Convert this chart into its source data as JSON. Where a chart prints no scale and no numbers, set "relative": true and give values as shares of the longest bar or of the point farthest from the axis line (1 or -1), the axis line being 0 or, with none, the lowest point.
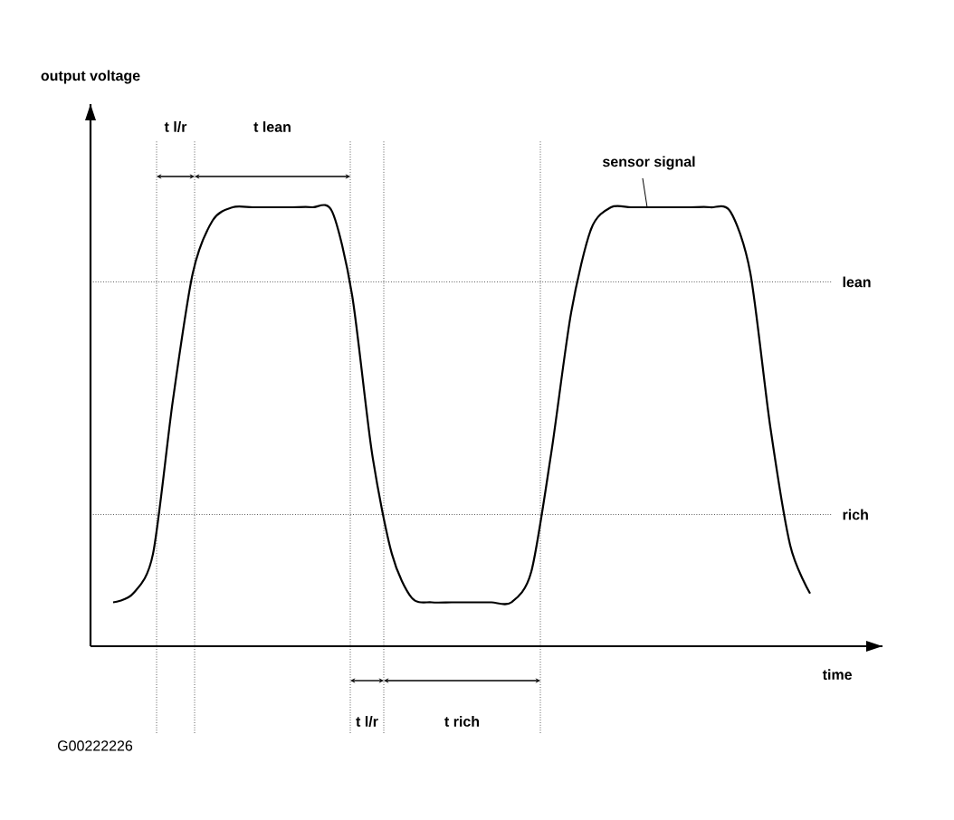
{
  "chart_data": {
    "type": "line",
    "relative": true,
    "xlabel": "time",
    "categories": [
      null,
      null,
      null,
      null,
      null,
      null,
      null,
      null,
      null,
      null,
      null,
      null,
      null,
      null,
      null,
      null,
      null,
      null,
      null,
      null,
      null,
      null,
      null,
      null,
      null,
      null,
      null,
      null,
      null,
      null,
      null,
      null,
      null,
      null,
      null,
      null
    ],
    "series": [
      {
        "color": "#000000",
        "values": [
          0.1,
          0.12,
          0.21,
          0.56,
          0.85,
          0.97,
          1,
          1,
          1,
          1,
          1,
          0.99,
          0.8,
          0.44,
          0.21,
          0.11,
          0.1,
          0.1,
          0.1,
          0.1,
          0.1,
          0.17,
          0.44,
          0.76,
          0.95,
          1,
          1,
          1,
          1,
          1,
          1,
          0.99,
          0.85,
          0.5,
          0.23,
          0.12
        ]
      }
    ],
    "ref_lines": [
      {
        "axis": "y",
        "value": 0.83,
        "label": "lean",
        "line_style": "dotted"
      },
      {
        "axis": "y",
        "value": 0.3,
        "label": "rich",
        "line_style": "dotted"
      }
    ],
    "annotations": [
      "t l/r",
      "t lean",
      "t l/r",
      "t rich",
      "sensor signal",
      "output voltage",
      "G00222226"
    ]
  }
}
